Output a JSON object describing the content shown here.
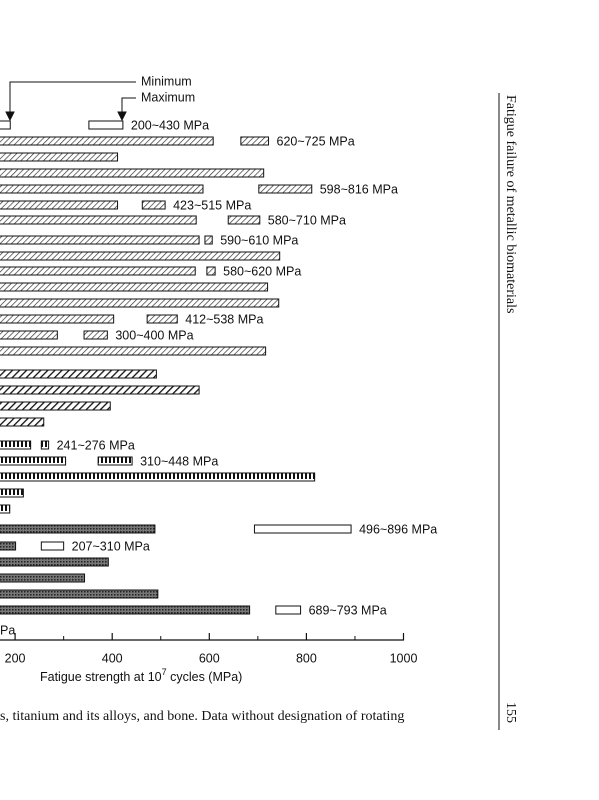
{
  "chart_data": {
    "type": "range-bar",
    "annotations": {
      "minimum": "Minimum",
      "maximum": "Maximum"
    },
    "legend_fragment": "Pa",
    "x_label": {
      "text": "Fatigue strength at 10",
      "sup": "7",
      "tail": " cycles (MPa)"
    },
    "xlim": [
      0,
      1000
    ],
    "xticks": [
      200,
      400,
      600,
      800,
      1000
    ],
    "xminor": [
      300,
      500,
      700,
      900
    ],
    "rows": [
      {
        "style": "open",
        "end": 190,
        "range": [
          352,
          422
        ],
        "range_style": "open",
        "label": "200~430 MPa"
      },
      {
        "style": "hatch",
        "end": 608,
        "range": [
          665,
          722
        ],
        "range_style": "hatch",
        "label": "620~725 MPa"
      },
      {
        "style": "hatch",
        "end": 411
      },
      {
        "style": "hatch",
        "end": 712
      },
      {
        "style": "hatch",
        "end": 587,
        "range": [
          702,
          811
        ],
        "range_style": "hatch",
        "label": "598~816 MPa"
      },
      {
        "style": "hatch",
        "end": 411,
        "range": [
          462,
          509
        ],
        "range_style": "hatch",
        "label": "423~515 MPa"
      },
      {
        "style": "hatch",
        "end": 573,
        "range": [
          639,
          704
        ],
        "range_style": "hatch",
        "label": "580~710 MPa"
      },
      {
        "style": "hatch",
        "end": 579,
        "range": [
          591,
          606
        ],
        "range_style": "hatch",
        "label": "590~610 MPa"
      },
      {
        "style": "hatch",
        "end": 745
      },
      {
        "style": "hatch",
        "end": 571,
        "range": [
          595,
          612
        ],
        "range_style": "hatch",
        "label": "580~620 MPa"
      },
      {
        "style": "hatch",
        "end": 720
      },
      {
        "style": "hatch",
        "end": 743
      },
      {
        "style": "hatch",
        "end": 403,
        "range": [
          472,
          534
        ],
        "range_style": "hatch",
        "label": "412~538 MPa"
      },
      {
        "style": "hatch",
        "end": 287,
        "range": [
          342,
          390
        ],
        "range_style": "hatch",
        "label": "300~400 MPa"
      },
      {
        "style": "hatch",
        "end": 716
      },
      {
        "style": "diag",
        "end": 491
      },
      {
        "style": "diag",
        "end": 579
      },
      {
        "style": "diag",
        "end": 396
      },
      {
        "style": "diag",
        "end": 259
      },
      {
        "style": "checker",
        "end": 232,
        "range": [
          254,
          269
        ],
        "range_style": "checker",
        "label": "241~276 MPa"
      },
      {
        "style": "checker",
        "end": 304,
        "range": [
          371,
          441
        ],
        "range_style": "checker",
        "label": "310~448 MPa"
      },
      {
        "style": "checker",
        "end": 817
      },
      {
        "style": "checker",
        "end": 217
      },
      {
        "style": "checker",
        "end": 189
      },
      {
        "style": "cross",
        "end": 488,
        "range": [
          693,
          892
        ],
        "range_style": "open",
        "label": "496~896 MPa"
      },
      {
        "style": "cross",
        "end": 201,
        "range": [
          254,
          300
        ],
        "range_style": "open",
        "label": "207~310 MPa"
      },
      {
        "style": "cross",
        "end": 392
      },
      {
        "style": "cross",
        "end": 343
      },
      {
        "style": "cross",
        "end": 494
      },
      {
        "style": "cross",
        "end": 683,
        "range": [
          737,
          788
        ],
        "range_style": "open",
        "label": "689~793 MPa"
      }
    ]
  },
  "page": {
    "running_head": "Fatigue failure of metallic biomaterials",
    "page_number": "155",
    "caption": "s, titanium and its alloys, and bone. Data without designation of rotating"
  }
}
